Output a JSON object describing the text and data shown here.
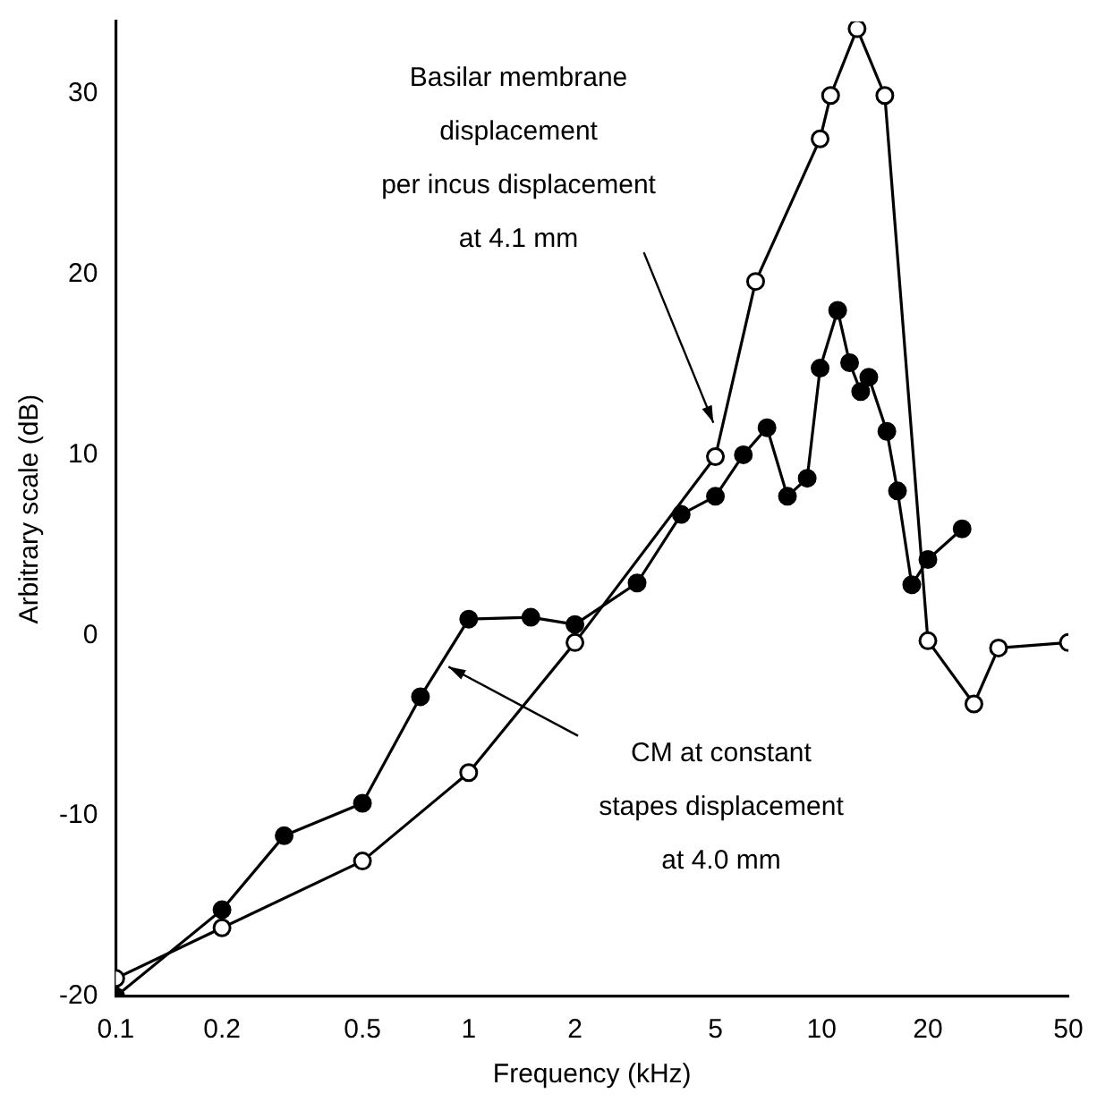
{
  "chart_data": {
    "type": "line",
    "xlabel": "Frequency (kHz)",
    "ylabel": "Arbitrary scale (dB)",
    "log": "x",
    "xlim": [
      0.1,
      50
    ],
    "xticks": [
      0.1,
      0.2,
      0.5,
      1,
      2,
      5,
      10,
      20,
      50
    ],
    "ylim": [
      -20,
      34
    ],
    "yticks": [
      -20,
      -10,
      0,
      10,
      20,
      30
    ],
    "grid": false,
    "legend": false,
    "marker": "circle",
    "line_style": "solid",
    "series": [
      {
        "color": "#000000",
        "x": [
          0.1,
          0.2,
          0.5,
          1,
          2,
          5,
          6.5,
          9.9,
          10.6,
          12.6,
          15.1,
          20,
          27,
          31.7,
          50
        ],
        "values": [
          -19,
          -16.2,
          -12.5,
          -7.6,
          -0.4,
          9.9,
          19.6,
          27.5,
          29.9,
          33.6,
          29.9,
          -0.3,
          -3.8,
          -0.7,
          -0.4
        ]
      },
      {
        "color": "#000000",
        "x": [
          0.1,
          0.2,
          0.3,
          0.5,
          0.73,
          1,
          1.5,
          2,
          3,
          4,
          5,
          6,
          7,
          8,
          9.1,
          9.9,
          11.1,
          12,
          12.9,
          13.6,
          15.3,
          16.4,
          18,
          20,
          25
        ],
        "values": [
          -20,
          -15.2,
          -11.1,
          -9.3,
          -3.4,
          0.9,
          1,
          0.6,
          2.9,
          6.7,
          7.7,
          10,
          11.5,
          7.7,
          8.7,
          14.8,
          18,
          15.1,
          13.5,
          14.3,
          11.3,
          8,
          2.8,
          4.2,
          5.9
        ]
      }
    ],
    "annotations": [
      {
        "text": "Basilar membrane\ndisplacement\nper incus displacement\nat 4.1 mm",
        "x": 5,
        "y": 11.5
      },
      {
        "text": "CM at constant\nstapes displacement\nat 4.0 mm",
        "x": 0.85,
        "y": -1.6
      }
    ]
  }
}
